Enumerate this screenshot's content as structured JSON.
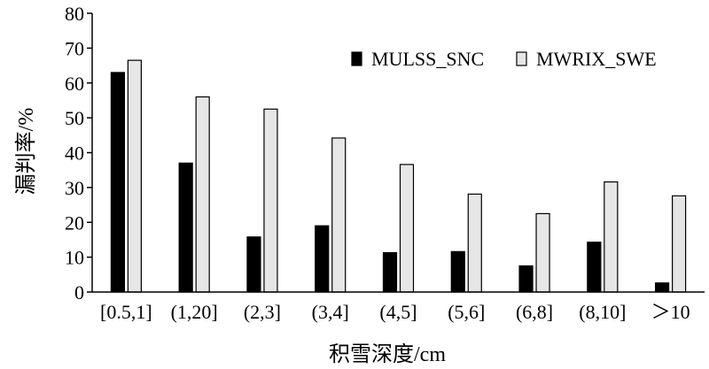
{
  "chart_data": {
    "type": "bar",
    "title": "",
    "xlabel": "积雪深度/cm",
    "ylabel": "漏判率/%",
    "ylim": [
      0,
      80
    ],
    "yticks": [
      0,
      10,
      20,
      30,
      40,
      50,
      60,
      70,
      80
    ],
    "categories": [
      "[0.5,1]",
      "(1,20]",
      "(2,3]",
      "(3,4]",
      "(4,5]",
      "(5,6]",
      "(6,8]",
      "(8,10]",
      "＞10"
    ],
    "series": [
      {
        "name": "MULSS_SNC",
        "color": "#000000",
        "values": [
          63.0,
          37.0,
          15.8,
          19.0,
          11.3,
          11.6,
          7.5,
          14.3,
          2.6
        ]
      },
      {
        "name": "MWRIX_SWE",
        "color": "#e6e6e6",
        "values": [
          66.5,
          56.0,
          52.5,
          44.2,
          36.6,
          28.1,
          22.5,
          31.6,
          27.6
        ]
      }
    ],
    "legend_position": "top-right",
    "grid": false
  }
}
